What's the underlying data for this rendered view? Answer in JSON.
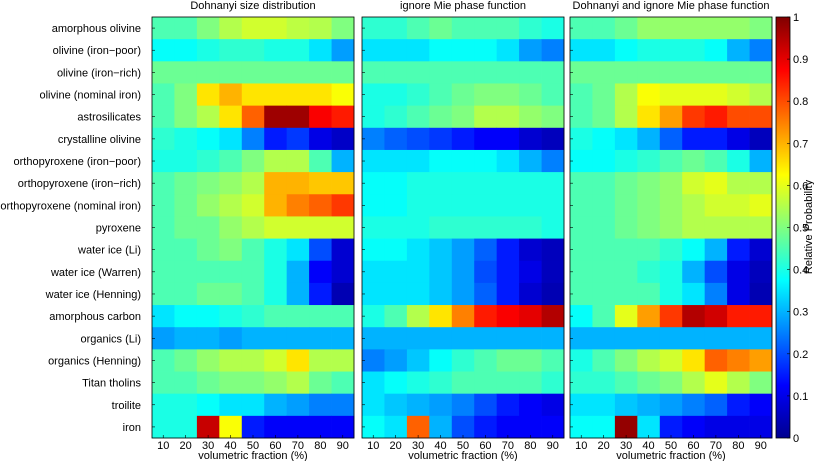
{
  "chart_data": {
    "type": "heatmap",
    "rows": [
      "amorphous olivine",
      "olivine (iron−poor)",
      "olivine (iron−rich)",
      "olivine (nominal iron)",
      "astrosilicates",
      "crystalline olivine",
      "orthopyroxene (iron−poor)",
      "orthopyroxene (iron−rich)",
      "orthopyroxene (nominal iron)",
      "pyroxene",
      "water ice (Li)",
      "water ice (Warren)",
      "water ice (Henning)",
      "amorphous carbon",
      "organics (Li)",
      "organics (Henning)",
      "Titan tholins",
      "troilite",
      "iron"
    ],
    "columns": [
      10,
      20,
      30,
      40,
      50,
      60,
      70,
      80,
      90
    ],
    "xlabel": "volumetric fraction (%)",
    "colorbar": {
      "label": "Relative Probability",
      "range": [
        0,
        1
      ],
      "ticks": [
        "0",
        "0.1",
        "0.2",
        "0.3",
        "0.4",
        "0.5",
        "0.6",
        "0.7",
        "0.8",
        "0.9",
        "1"
      ],
      "colormap": "jet"
    },
    "panels": [
      {
        "title": "Dohnanyi size distribution",
        "values": [
          [
            0.45,
            0.45,
            0.5,
            0.55,
            0.58,
            0.58,
            0.56,
            0.55,
            0.5
          ],
          [
            0.38,
            0.38,
            0.4,
            0.42,
            0.42,
            0.4,
            0.4,
            0.35,
            0.28
          ],
          [
            0.48,
            0.48,
            0.48,
            0.48,
            0.48,
            0.48,
            0.48,
            0.48,
            0.48
          ],
          [
            0.45,
            0.5,
            0.65,
            0.7,
            0.65,
            0.65,
            0.65,
            0.65,
            0.62
          ],
          [
            0.45,
            0.5,
            0.55,
            0.65,
            0.78,
            0.97,
            0.97,
            0.88,
            0.85
          ],
          [
            0.42,
            0.4,
            0.38,
            0.35,
            0.25,
            0.15,
            0.18,
            0.1,
            0.07
          ],
          [
            0.4,
            0.4,
            0.42,
            0.45,
            0.5,
            0.55,
            0.55,
            0.45,
            0.3
          ],
          [
            0.45,
            0.48,
            0.5,
            0.52,
            0.55,
            0.7,
            0.7,
            0.68,
            0.68
          ],
          [
            0.45,
            0.48,
            0.52,
            0.55,
            0.58,
            0.7,
            0.75,
            0.78,
            0.82
          ],
          [
            0.45,
            0.48,
            0.48,
            0.52,
            0.55,
            0.58,
            0.58,
            0.58,
            0.58
          ],
          [
            0.45,
            0.45,
            0.48,
            0.5,
            0.45,
            0.4,
            0.35,
            0.2,
            0.08
          ],
          [
            0.45,
            0.45,
            0.45,
            0.45,
            0.45,
            0.4,
            0.3,
            0.12,
            0.08
          ],
          [
            0.45,
            0.45,
            0.48,
            0.48,
            0.45,
            0.4,
            0.3,
            0.15,
            0.05
          ],
          [
            0.35,
            0.38,
            0.38,
            0.4,
            0.42,
            0.45,
            0.45,
            0.45,
            0.45
          ],
          [
            0.28,
            0.3,
            0.3,
            0.28,
            0.3,
            0.3,
            0.3,
            0.3,
            0.3
          ],
          [
            0.45,
            0.48,
            0.52,
            0.55,
            0.55,
            0.58,
            0.65,
            0.55,
            0.55
          ],
          [
            0.45,
            0.45,
            0.48,
            0.5,
            0.5,
            0.52,
            0.55,
            0.48,
            0.45
          ],
          [
            0.4,
            0.4,
            0.38,
            0.35,
            0.35,
            0.3,
            0.28,
            0.25,
            0.25
          ],
          [
            0.4,
            0.4,
            0.93,
            0.62,
            0.15,
            0.12,
            0.12,
            0.12,
            0.12
          ]
        ]
      },
      {
        "title": "ignore Mie phase function",
        "values": [
          [
            0.42,
            0.42,
            0.45,
            0.48,
            0.45,
            0.45,
            0.45,
            0.42,
            0.4
          ],
          [
            0.35,
            0.35,
            0.35,
            0.38,
            0.38,
            0.38,
            0.35,
            0.28,
            0.25
          ],
          [
            0.45,
            0.45,
            0.45,
            0.45,
            0.45,
            0.45,
            0.45,
            0.45,
            0.45
          ],
          [
            0.4,
            0.4,
            0.42,
            0.45,
            0.48,
            0.5,
            0.5,
            0.48,
            0.45
          ],
          [
            0.4,
            0.42,
            0.45,
            0.48,
            0.5,
            0.55,
            0.55,
            0.52,
            0.5
          ],
          [
            0.25,
            0.22,
            0.2,
            0.18,
            0.15,
            0.12,
            0.12,
            0.08,
            0.06
          ],
          [
            0.35,
            0.35,
            0.35,
            0.38,
            0.38,
            0.38,
            0.35,
            0.3,
            0.25
          ],
          [
            0.38,
            0.38,
            0.4,
            0.4,
            0.4,
            0.4,
            0.4,
            0.4,
            0.4
          ],
          [
            0.38,
            0.38,
            0.4,
            0.4,
            0.4,
            0.4,
            0.4,
            0.4,
            0.4
          ],
          [
            0.4,
            0.4,
            0.4,
            0.42,
            0.42,
            0.42,
            0.42,
            0.42,
            0.4
          ],
          [
            0.38,
            0.38,
            0.35,
            0.32,
            0.28,
            0.22,
            0.15,
            0.08,
            0.06
          ],
          [
            0.35,
            0.35,
            0.35,
            0.32,
            0.28,
            0.2,
            0.15,
            0.1,
            0.06
          ],
          [
            0.35,
            0.35,
            0.35,
            0.32,
            0.28,
            0.22,
            0.15,
            0.08,
            0.05
          ],
          [
            0.4,
            0.45,
            0.55,
            0.65,
            0.75,
            0.85,
            0.88,
            0.9,
            0.95
          ],
          [
            0.3,
            0.3,
            0.3,
            0.3,
            0.3,
            0.3,
            0.3,
            0.3,
            0.3
          ],
          [
            0.25,
            0.28,
            0.32,
            0.38,
            0.42,
            0.45,
            0.48,
            0.48,
            0.45
          ],
          [
            0.35,
            0.38,
            0.4,
            0.42,
            0.45,
            0.45,
            0.45,
            0.45,
            0.42
          ],
          [
            0.35,
            0.32,
            0.3,
            0.28,
            0.25,
            0.2,
            0.15,
            0.12,
            0.1
          ],
          [
            0.38,
            0.35,
            0.78,
            0.3,
            0.2,
            0.15,
            0.12,
            0.12,
            0.12
          ]
        ]
      },
      {
        "title": "Dohnanyi and ignore Mie phase function",
        "values": [
          [
            0.45,
            0.45,
            0.48,
            0.52,
            0.52,
            0.52,
            0.52,
            0.52,
            0.5
          ],
          [
            0.35,
            0.35,
            0.38,
            0.4,
            0.4,
            0.4,
            0.38,
            0.3,
            0.25
          ],
          [
            0.48,
            0.48,
            0.48,
            0.48,
            0.48,
            0.48,
            0.48,
            0.48,
            0.48
          ],
          [
            0.45,
            0.48,
            0.55,
            0.62,
            0.6,
            0.6,
            0.6,
            0.58,
            0.55
          ],
          [
            0.45,
            0.48,
            0.55,
            0.65,
            0.72,
            0.82,
            0.85,
            0.8,
            0.8
          ],
          [
            0.4,
            0.38,
            0.35,
            0.3,
            0.22,
            0.15,
            0.15,
            0.1,
            0.06
          ],
          [
            0.38,
            0.38,
            0.4,
            0.42,
            0.45,
            0.48,
            0.45,
            0.4,
            0.3
          ],
          [
            0.45,
            0.45,
            0.48,
            0.5,
            0.52,
            0.58,
            0.6,
            0.55,
            0.55
          ],
          [
            0.45,
            0.45,
            0.48,
            0.5,
            0.52,
            0.55,
            0.58,
            0.58,
            0.6
          ],
          [
            0.45,
            0.45,
            0.48,
            0.5,
            0.52,
            0.55,
            0.55,
            0.55,
            0.55
          ],
          [
            0.45,
            0.45,
            0.45,
            0.45,
            0.42,
            0.38,
            0.3,
            0.15,
            0.08
          ],
          [
            0.45,
            0.45,
            0.45,
            0.42,
            0.4,
            0.3,
            0.2,
            0.1,
            0.06
          ],
          [
            0.45,
            0.45,
            0.45,
            0.45,
            0.4,
            0.35,
            0.25,
            0.1,
            0.05
          ],
          [
            0.38,
            0.45,
            0.6,
            0.72,
            0.82,
            0.95,
            0.92,
            0.85,
            0.85
          ],
          [
            0.3,
            0.3,
            0.3,
            0.3,
            0.3,
            0.3,
            0.3,
            0.3,
            0.3
          ],
          [
            0.4,
            0.45,
            0.5,
            0.55,
            0.58,
            0.65,
            0.78,
            0.75,
            0.72
          ],
          [
            0.42,
            0.42,
            0.45,
            0.48,
            0.5,
            0.55,
            0.6,
            0.55,
            0.5
          ],
          [
            0.35,
            0.35,
            0.32,
            0.3,
            0.28,
            0.25,
            0.22,
            0.15,
            0.12
          ],
          [
            0.38,
            0.38,
            0.98,
            0.35,
            0.15,
            0.12,
            0.1,
            0.1,
            0.1
          ]
        ]
      }
    ]
  }
}
